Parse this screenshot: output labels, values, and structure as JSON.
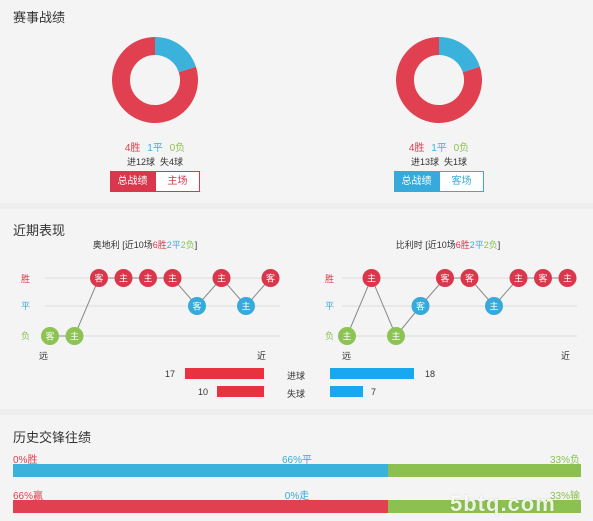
{
  "section1": {
    "title": "赛事战绩",
    "left": {
      "win_pct": 0.8,
      "draw_pct": 0.2,
      "loss_pct": 0.0,
      "wins": "4胜",
      "draws": "1平",
      "losses": "0负",
      "goals": "进12球  失4球",
      "tab_total": "总战绩",
      "tab_venue": "主场"
    },
    "right": {
      "win_pct": 0.8,
      "draw_pct": 0.2,
      "loss_pct": 0.0,
      "wins": "4胜",
      "draws": "1平",
      "losses": "0负",
      "goals": "进13球  失1球",
      "tab_total": "总战绩",
      "tab_venue": "客场"
    }
  },
  "section2": {
    "title": "近期表现",
    "legend": {
      "win": "胜",
      "draw": "平",
      "loss": "负"
    },
    "axis": {
      "far": "远",
      "near": "近"
    },
    "left": {
      "team": "奥地利",
      "summary_pre": " [近10场",
      "w": "6胜",
      "d": "2平",
      "l": "2负",
      "summary_post": "]",
      "matches": [
        {
          "r": "L",
          "v": "客"
        },
        {
          "r": "L",
          "v": "主"
        },
        {
          "r": "W",
          "v": "客"
        },
        {
          "r": "W",
          "v": "主"
        },
        {
          "r": "W",
          "v": "主"
        },
        {
          "r": "W",
          "v": "主"
        },
        {
          "r": "D",
          "v": "客"
        },
        {
          "r": "W",
          "v": "主"
        },
        {
          "r": "D",
          "v": "主"
        },
        {
          "r": "W",
          "v": "客"
        }
      ],
      "goals_for": 17,
      "goals_against": 10
    },
    "right": {
      "team": "比利时",
      "summary_pre": " [近10场",
      "w": "6胜",
      "d": "2平",
      "l": "2负",
      "summary_post": "]",
      "matches": [
        {
          "r": "L",
          "v": "主"
        },
        {
          "r": "W",
          "v": "主"
        },
        {
          "r": "L",
          "v": "主"
        },
        {
          "r": "D",
          "v": "客"
        },
        {
          "r": "W",
          "v": "客"
        },
        {
          "r": "W",
          "v": "客"
        },
        {
          "r": "D",
          "v": "主"
        },
        {
          "r": "W",
          "v": "主"
        },
        {
          "r": "W",
          "v": "客"
        },
        {
          "r": "W",
          "v": "主"
        }
      ],
      "goals_for": 18,
      "goals_against": 7
    },
    "goals_for_label": "进球",
    "goals_against_label": "失球",
    "goals_max": 18
  },
  "section3": {
    "title": "历史交锋往绩",
    "row1": {
      "left": "0%胜",
      "mid": "66%平",
      "right": "33%负",
      "win": 0.0,
      "draw": 0.66,
      "loss": 0.33
    },
    "row2": {
      "left": "66%赢",
      "mid": "0%走",
      "right": "33%输",
      "win": 0.66,
      "draw": 0.0,
      "loss": 0.33
    }
  },
  "colors": {
    "red": "#e0404f",
    "blue": "#3ab2dc",
    "green": "#8cc152",
    "win": "#d9374b",
    "draw": "#37a9db",
    "loss": "#8dc353",
    "bar_red": "#e8323f",
    "bar_blue": "#17a8ef"
  },
  "watermark": "5btq.com"
}
